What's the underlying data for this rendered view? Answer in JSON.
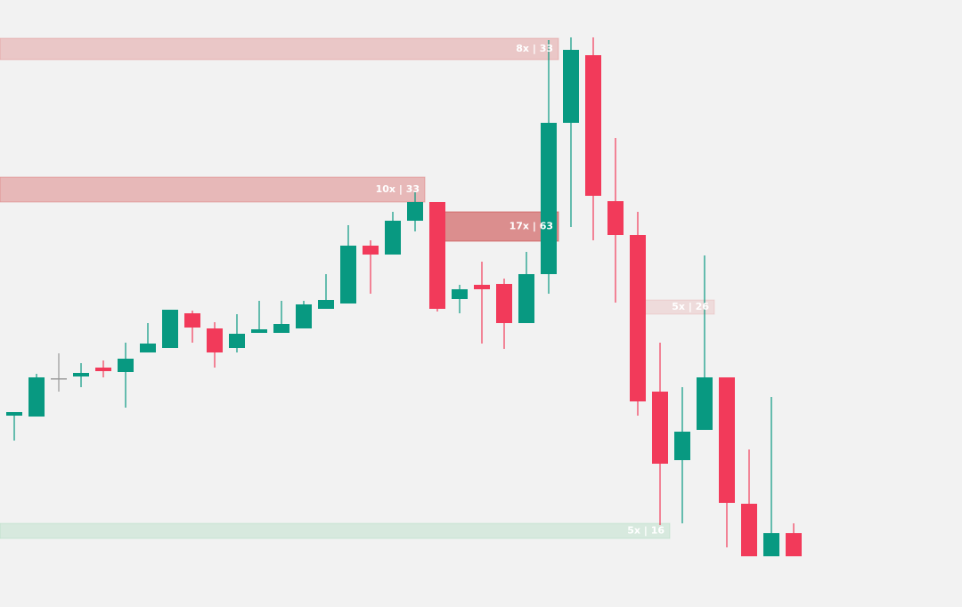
{
  "chart_data": {
    "type": "candlestick",
    "categories": [
      null,
      null,
      null,
      null,
      null,
      null,
      null,
      null,
      null,
      null,
      null,
      null,
      null,
      null,
      null,
      null,
      null,
      null,
      null,
      null,
      null,
      null,
      null,
      null,
      null,
      null,
      null,
      null,
      null,
      null,
      null,
      null,
      null,
      null,
      null,
      null
    ],
    "open": [
      215,
      214,
      257,
      259,
      269,
      264,
      286,
      291,
      330,
      313,
      291,
      308,
      308,
      313,
      335,
      341,
      406,
      396,
      434,
      455,
      346,
      362,
      363,
      319,
      374,
      544,
      620,
      456,
      418,
      242,
      165,
      199,
      258,
      116,
      57,
      83
    ],
    "high": [
      219,
      262,
      285,
      274,
      277,
      297,
      319,
      334,
      333,
      320,
      329,
      344,
      344,
      344,
      374,
      429,
      412,
      444,
      467,
      455,
      362,
      388,
      369,
      399,
      637,
      640,
      640,
      527,
      444,
      297,
      247,
      395,
      258,
      177,
      236,
      94
    ],
    "low": [
      187,
      214,
      242,
      247,
      258,
      224,
      286,
      291,
      297,
      269,
      286,
      308,
      308,
      313,
      335,
      341,
      352,
      396,
      422,
      332,
      330,
      296,
      290,
      319,
      352,
      427,
      412,
      342,
      215,
      92,
      94,
      199,
      67,
      57,
      57,
      57
    ],
    "close": [
      219,
      258,
      257,
      263,
      265,
      279,
      296,
      334,
      314,
      286,
      307,
      312,
      318,
      340,
      345,
      406,
      396,
      434,
      455,
      335,
      357,
      357,
      319,
      374,
      544,
      626,
      462,
      418,
      231,
      161,
      197,
      258,
      117,
      57,
      83,
      57
    ],
    "up_color": "#089981",
    "down_color": "#f23a5a",
    "flat_color": "#999999",
    "ylim": [
      0,
      682
    ],
    "zones": [
      {
        "label": "8x | 33",
        "low": 615,
        "high": 639,
        "color": "rgba(214,90,90,0.28)"
      },
      {
        "label": "10x | 33",
        "low": 455,
        "high": 483,
        "color": "rgba(214,90,90,0.38)"
      },
      {
        "label": "17x | 63",
        "low": 411,
        "high": 444,
        "color": "rgba(200,60,60,0.55)"
      },
      {
        "label": "5x | 26",
        "low": 329,
        "high": 345,
        "color": "rgba(214,90,90,0.15)"
      },
      {
        "label": "5x | 16",
        "low": 77,
        "high": 94,
        "color": "rgba(60,180,110,0.15)"
      }
    ]
  }
}
